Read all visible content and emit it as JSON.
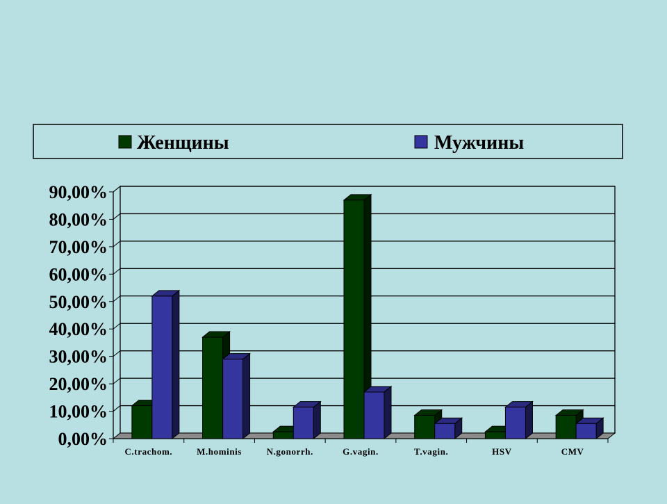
{
  "chart_data": {
    "type": "bar",
    "categories": [
      "C.trachom.",
      "M.hominis",
      "N.gonorrh.",
      "G.vagin.",
      "T.vagin.",
      "HSV",
      "CMV"
    ],
    "series": [
      {
        "name": "Женщины",
        "values": [
          12,
          37,
          2.5,
          87,
          8.5,
          2.5,
          8.5
        ],
        "color": "#003a00"
      },
      {
        "name": "Мужчины",
        "values": [
          52,
          29,
          11.5,
          17,
          5.5,
          11.5,
          5.5
        ],
        "color": "#3535a0"
      }
    ],
    "yticks": [
      "0,00%",
      "10,00%",
      "20,00%",
      "30,00%",
      "40,00%",
      "50,00%",
      "60,00%",
      "70,00%",
      "80,00%",
      "90,00%"
    ],
    "ylim": [
      0,
      90
    ],
    "grid": true,
    "legend_position": "top"
  }
}
